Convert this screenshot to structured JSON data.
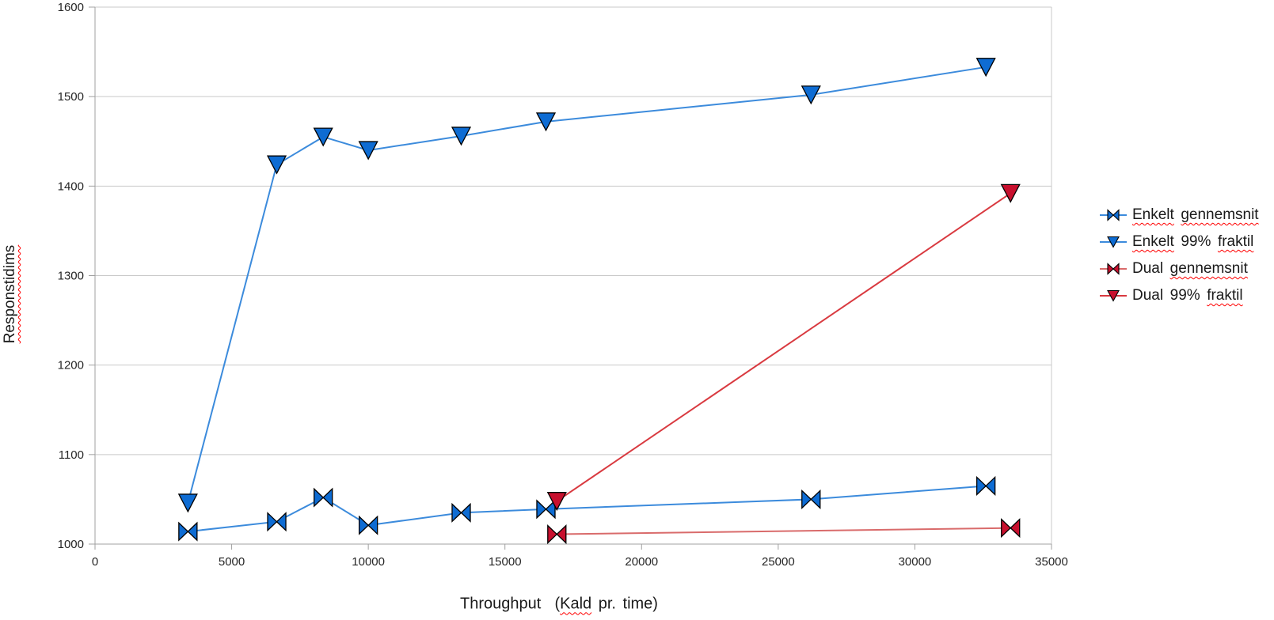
{
  "chart_data": {
    "type": "line",
    "title": "",
    "grid": "on",
    "legend_position": "right",
    "x_axis": {
      "title_parts": [
        {
          "text": "Throughput  (",
          "squiggle": false
        },
        {
          "text": "Kald",
          "squiggle": true
        },
        {
          "text": " pr. time)",
          "squiggle": false
        }
      ],
      "min": 0,
      "max": 35000,
      "ticks": [
        0,
        5000,
        10000,
        15000,
        20000,
        25000,
        30000,
        35000
      ]
    },
    "y_axis": {
      "label": "Responstidims",
      "min": 1000,
      "max": 1600,
      "ticks": [
        1000,
        1100,
        1200,
        1300,
        1400,
        1500,
        1600
      ]
    },
    "series": [
      {
        "name": "Enkelt gennemsnit",
        "label_words": [
          {
            "text": "Enkelt",
            "squiggle": true
          },
          {
            "text": "gennemsnit",
            "squiggle": true
          }
        ],
        "marker": "bowtie",
        "line_color": "#3C8BDC",
        "fill_color": "#0E6CD3",
        "points": [
          [
            3400,
            1014
          ],
          [
            6650,
            1025
          ],
          [
            8350,
            1052
          ],
          [
            10000,
            1021
          ],
          [
            13400,
            1035
          ],
          [
            16500,
            1039
          ],
          [
            26200,
            1050
          ],
          [
            32600,
            1065
          ]
        ]
      },
      {
        "name": "Enkelt 99% fraktil",
        "label_words": [
          {
            "text": "Enkelt",
            "squiggle": true
          },
          {
            "text": "99%",
            "squiggle": false
          },
          {
            "text": "fraktil",
            "squiggle": true
          }
        ],
        "marker": "triangle-down",
        "line_color": "#3C8BDC",
        "fill_color": "#0E6CD3",
        "points": [
          [
            3400,
            1046
          ],
          [
            6650,
            1424
          ],
          [
            8350,
            1455
          ],
          [
            10000,
            1440
          ],
          [
            13400,
            1456
          ],
          [
            16500,
            1472
          ],
          [
            26200,
            1502
          ],
          [
            32600,
            1533
          ]
        ]
      },
      {
        "name": "Dual gennemsnit",
        "label_words": [
          {
            "text": "Dual",
            "squiggle": false
          },
          {
            "text": "gennemsnit",
            "squiggle": true
          }
        ],
        "marker": "bowtie",
        "line_color": "#D96B6B",
        "fill_color": "#C8102E",
        "points": [
          [
            16900,
            1011
          ],
          [
            33500,
            1018
          ]
        ]
      },
      {
        "name": "Dual 99% fraktil",
        "label_words": [
          {
            "text": "Dual",
            "squiggle": false
          },
          {
            "text": "99%",
            "squiggle": false
          },
          {
            "text": "fraktil",
            "squiggle": true
          }
        ],
        "marker": "triangle-down",
        "line_color": "#D93A40",
        "fill_color": "#C8102E",
        "points": [
          [
            16900,
            1048
          ],
          [
            33500,
            1392
          ]
        ]
      }
    ],
    "colors": {
      "grid": "#C9C9C9",
      "axis": "#A0A0A0",
      "tick_text": "#262626",
      "title_text": "#1A1A1A",
      "squiggle": "#FF0000"
    }
  }
}
